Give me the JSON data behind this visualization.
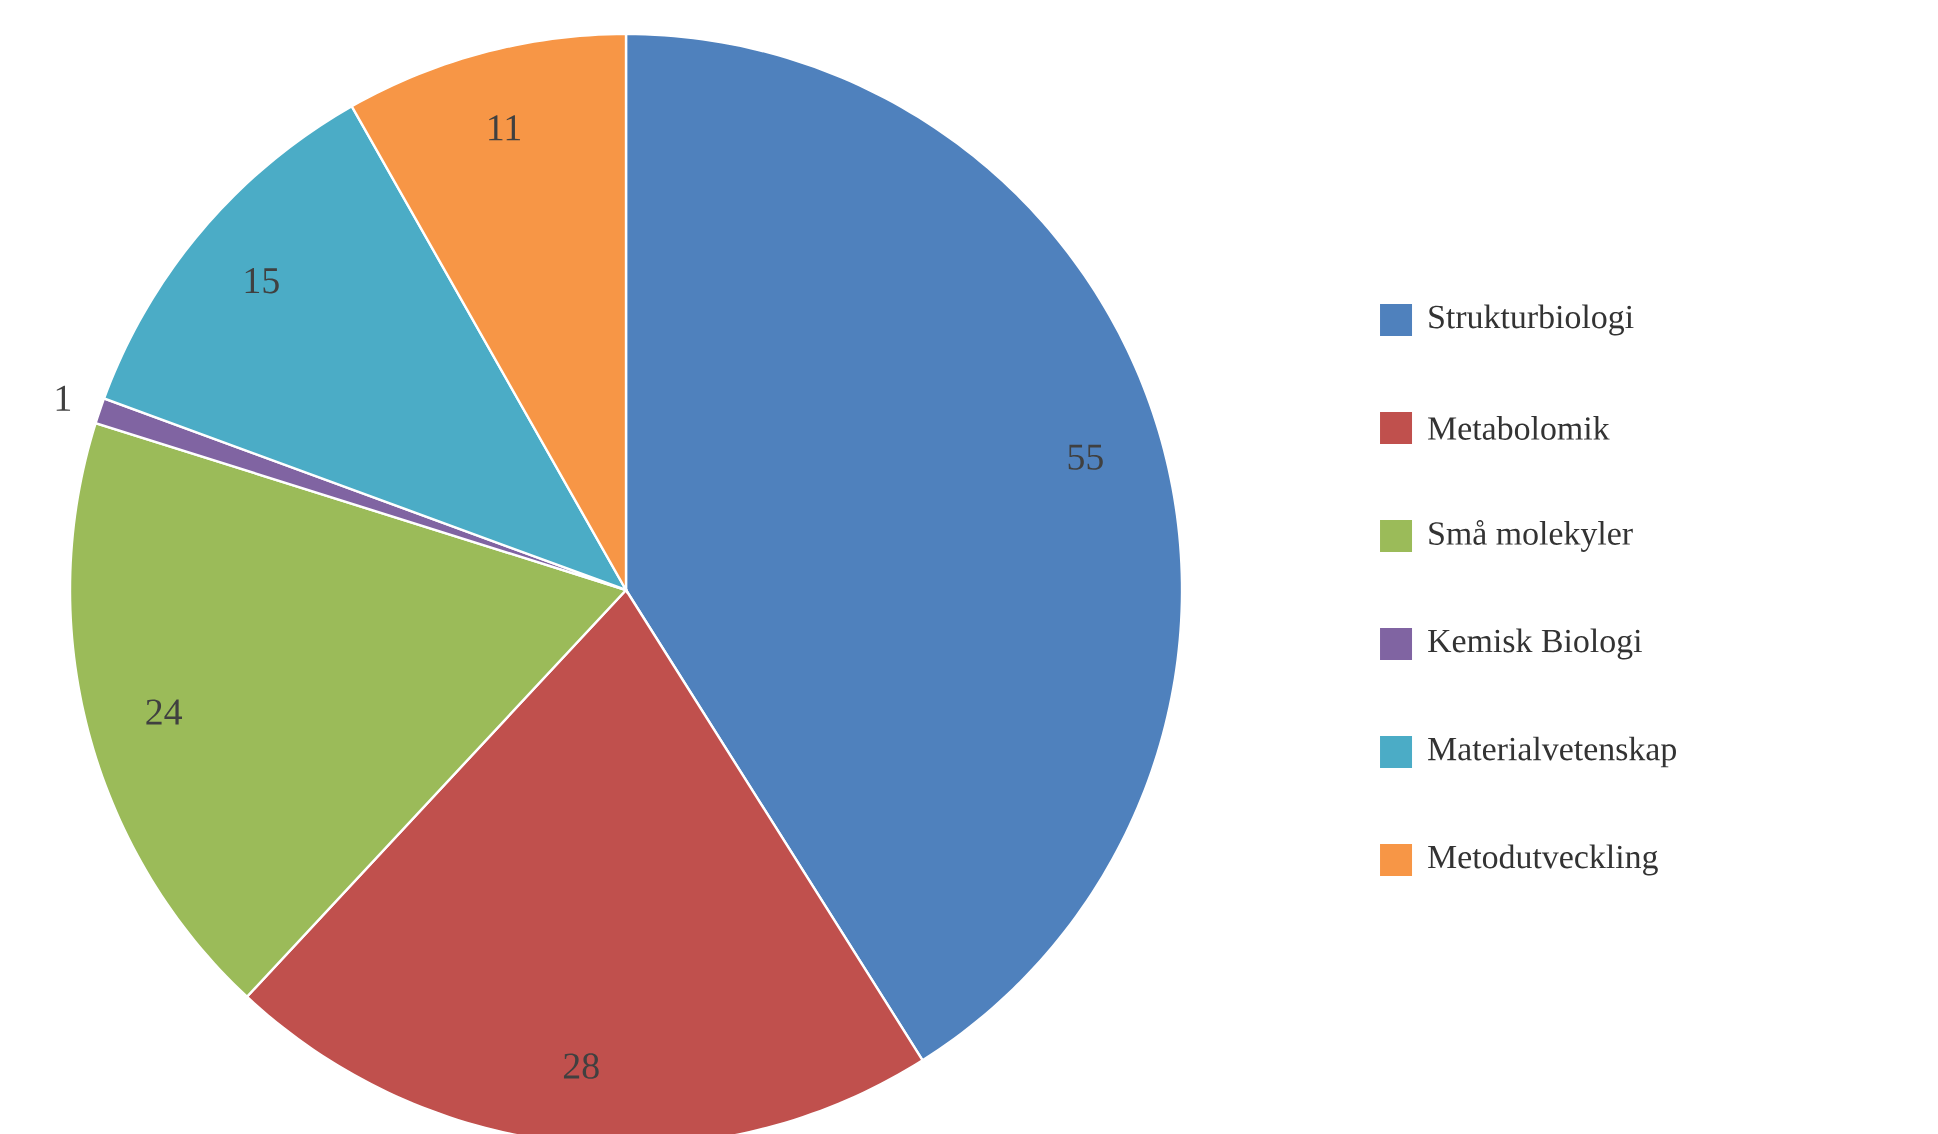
{
  "chart_data": {
    "type": "pie",
    "categories": [
      "Strukturbiologi",
      "Metabolomik",
      "Små molekyler",
      "Kemisk Biologi",
      "Materialvetenskap",
      "Metodutveckling"
    ],
    "values": [
      55,
      28,
      24,
      1,
      15,
      11
    ],
    "colors": [
      "#4f81bd",
      "#c0504d",
      "#9bbb59",
      "#8064a2",
      "#4bacc6",
      "#f79646"
    ],
    "data_labels": true,
    "legend": "right"
  }
}
